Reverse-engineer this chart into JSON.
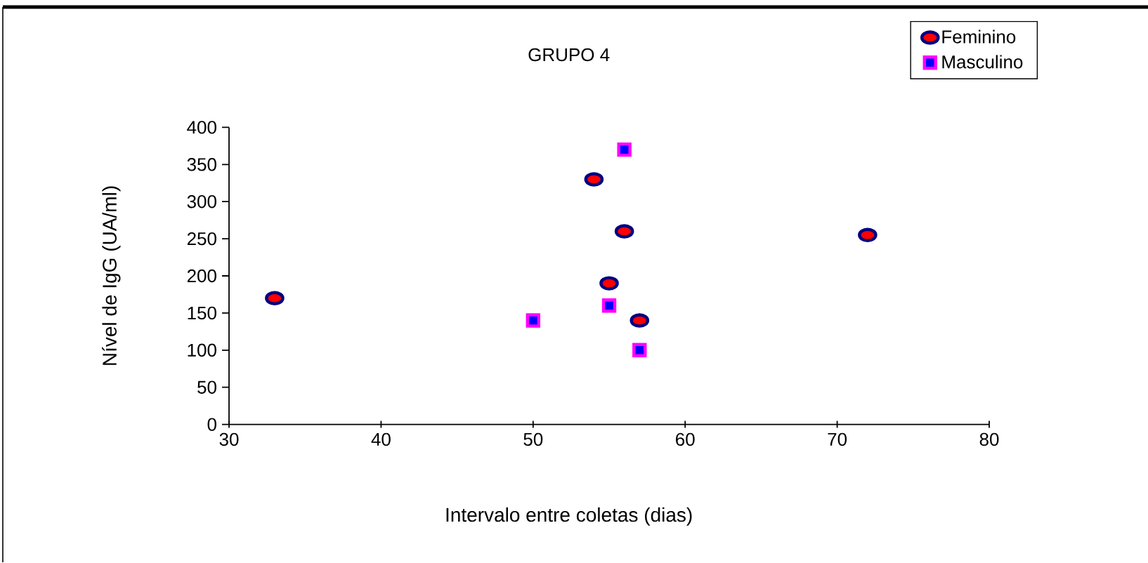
{
  "chart_data": {
    "type": "scatter",
    "title": "GRUPO 4",
    "xlabel": "Intervalo entre coletas (dias)",
    "ylabel": "Nível de IgG (UA/ml)",
    "series": [
      {
        "name": "Feminino",
        "color": "#ff0000",
        "marker": "circle",
        "x": [
          33,
          54,
          56,
          55,
          57,
          72
        ],
        "values": [
          170,
          330,
          260,
          190,
          140,
          255
        ]
      },
      {
        "name": "Masculino",
        "color": "#0000ff",
        "marker": "square",
        "x": [
          56,
          50,
          55,
          57
        ],
        "values": [
          370,
          140,
          160,
          100
        ]
      }
    ],
    "xlim": [
      30,
      80
    ],
    "xticks": [
      30,
      40,
      50,
      60,
      70,
      80
    ],
    "ylim": [
      0,
      400
    ],
    "yticks": [
      0,
      50,
      100,
      150,
      200,
      250,
      300,
      350,
      400
    ],
    "grid": false,
    "legend": "top right"
  }
}
